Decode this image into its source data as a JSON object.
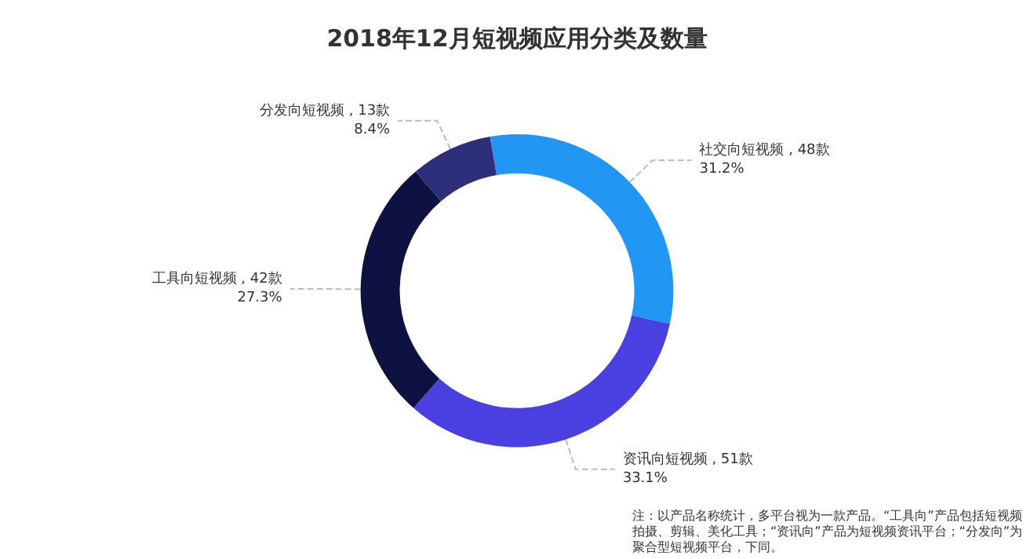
{
  "chart_data": {
    "type": "donut",
    "title": "2018年12月短视频应用分类及数量",
    "categories": [
      "社交向短视频",
      "资讯向短视频",
      "工具向短视频",
      "分发向短视频"
    ],
    "values": [
      48,
      51,
      42,
      13
    ],
    "value_labels": [
      " , 48款\n31.2%",
      " , 51款\n33.1%",
      " , 42款\n27.3%",
      " , 13款\n8.4%"
    ],
    "colors": [
      "#2196f3",
      "#4a3fe0",
      "#0d1240",
      "#2e2f7a"
    ],
    "legend": false,
    "annotations": [
      "注：以产品名称统计，多平台视为一款产品。“工具向”产品包括短视频拍摄、剪辑、美化工具；“资讯向”产品为短视频资讯平台；“分发向”为聚合型短视频平台，下同。"
    ]
  }
}
